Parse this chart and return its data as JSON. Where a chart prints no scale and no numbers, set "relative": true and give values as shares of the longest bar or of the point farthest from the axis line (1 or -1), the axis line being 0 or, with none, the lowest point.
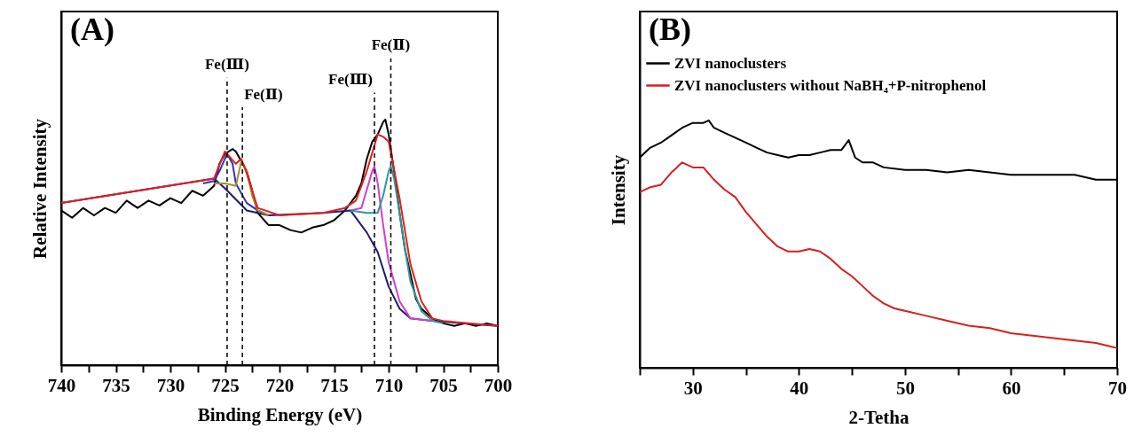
{
  "chart_data": [
    {
      "type": "line",
      "title": "(A)",
      "xlabel": "Binding Energy (eV)",
      "ylabel": "Relative Intensity",
      "relative": true,
      "tick_labels": "x",
      "xlim": [
        740,
        700
      ],
      "xticks": [
        740,
        {
          "value": 737.5,
          "label": null
        },
        735,
        {
          "value": 732.5,
          "label": null
        },
        730,
        {
          "value": 727.5,
          "label": null
        },
        725,
        {
          "value": 722.5,
          "label": null
        },
        720,
        {
          "value": 717.5,
          "label": null
        },
        715,
        {
          "value": 712.5,
          "label": null
        },
        710,
        {
          "value": 707.5,
          "label": null
        },
        705,
        {
          "value": 702.5,
          "label": null
        },
        700
      ],
      "ref_lines": [
        {
          "axis": "x",
          "value": 724.8,
          "label": "Fe(Ⅲ)",
          "line_style": "dashed"
        },
        {
          "axis": "x",
          "value": 723.4,
          "label": "Fe(Ⅱ)",
          "line_style": "dashed"
        },
        {
          "axis": "x",
          "value": 711.3,
          "label": "Fe(Ⅲ)",
          "line_style": "dashed"
        },
        {
          "axis": "x",
          "value": 709.8,
          "label": "Fe(Ⅱ)",
          "line_style": "dashed"
        }
      ],
      "series": [
        {
          "color": "#000000",
          "x": [
            740,
            739,
            738,
            737,
            736,
            735,
            734,
            733,
            732,
            731,
            730,
            729,
            728,
            727,
            726,
            725.5,
            725,
            724.3,
            724,
            723.5,
            723,
            722.5,
            722,
            721,
            720,
            719,
            718,
            717,
            716,
            715,
            714,
            713,
            712.5,
            712,
            711.5,
            711,
            710.5,
            710.3,
            710,
            709.5,
            709,
            708.5,
            708,
            707.5,
            707,
            706.5,
            706,
            705,
            704,
            703,
            702,
            701,
            700
          ],
          "values": [
            0.63,
            0.6,
            0.64,
            0.61,
            0.64,
            0.62,
            0.67,
            0.64,
            0.67,
            0.65,
            0.68,
            0.66,
            0.71,
            0.69,
            0.73,
            0.82,
            0.86,
            0.88,
            0.87,
            0.83,
            0.79,
            0.71,
            0.62,
            0.57,
            0.57,
            0.55,
            0.54,
            0.56,
            0.57,
            0.59,
            0.63,
            0.69,
            0.74,
            0.84,
            0.91,
            0.94,
            0.99,
            1.0,
            0.94,
            0.79,
            0.62,
            0.47,
            0.37,
            0.27,
            0.23,
            0.21,
            0.19,
            0.17,
            0.16,
            0.17,
            0.16,
            0.17,
            0.16
          ]
        },
        {
          "color": "#1c1c6e",
          "x": [
            740,
            726,
            725,
            723,
            721,
            716,
            713.5,
            712,
            711,
            710,
            709,
            708,
            706,
            700
          ],
          "values": [
            0.66,
            0.76,
            0.72,
            0.63,
            0.61,
            0.62,
            0.63,
            0.54,
            0.46,
            0.32,
            0.23,
            0.19,
            0.18,
            0.16
          ]
        },
        {
          "color": "#3030c0",
          "x": [
            727,
            726,
            725.5,
            724.8,
            724.3,
            724,
            723,
            722,
            721
          ],
          "values": [
            0.74,
            0.75,
            0.79,
            0.86,
            0.82,
            0.74,
            0.66,
            0.63,
            0.61
          ]
        },
        {
          "color": "#a09030",
          "x": [
            726,
            725,
            724,
            723.5,
            723,
            722.5,
            722,
            721
          ],
          "values": [
            0.74,
            0.74,
            0.73,
            0.83,
            0.79,
            0.69,
            0.63,
            0.61
          ]
        },
        {
          "color": "#d040d0",
          "x": [
            713.5,
            712.5,
            711.5,
            711.3,
            711,
            710.5,
            710,
            709,
            708,
            706
          ],
          "values": [
            0.63,
            0.64,
            0.79,
            0.81,
            0.74,
            0.57,
            0.42,
            0.26,
            0.19,
            0.18
          ]
        },
        {
          "color": "#2a9a9a",
          "x": [
            713.5,
            712,
            711,
            710.5,
            710,
            709.8,
            709.5,
            709,
            708.5,
            708,
            707,
            706,
            705
          ],
          "values": [
            0.63,
            0.62,
            0.62,
            0.69,
            0.79,
            0.81,
            0.76,
            0.62,
            0.47,
            0.34,
            0.22,
            0.18,
            0.17
          ]
        },
        {
          "color": "#e02020",
          "x": [
            740,
            726,
            725,
            724,
            723.5,
            723,
            722,
            720,
            716,
            714,
            713,
            712,
            711,
            710.5,
            710,
            709,
            708,
            707,
            706,
            705,
            700
          ],
          "values": [
            0.66,
            0.76,
            0.87,
            0.82,
            0.84,
            0.78,
            0.64,
            0.61,
            0.62,
            0.64,
            0.67,
            0.79,
            0.94,
            0.93,
            0.91,
            0.68,
            0.41,
            0.26,
            0.19,
            0.18,
            0.16
          ]
        }
      ]
    },
    {
      "type": "line",
      "title": "(B)",
      "xlabel": "2-Tetha",
      "ylabel": "Intensity",
      "relative": true,
      "tick_labels": "x",
      "legend": "top left",
      "xlim": [
        25,
        70
      ],
      "xticks": [
        {
          "value": 25,
          "label": null
        },
        30,
        {
          "value": 35,
          "label": null
        },
        40,
        {
          "value": 45,
          "label": null
        },
        50,
        {
          "value": 55,
          "label": null
        },
        60,
        {
          "value": 65,
          "label": null
        },
        70
      ],
      "series": [
        {
          "name": "ZVI nanoclusters",
          "color": "#000000",
          "x": [
            25,
            26,
            27,
            28,
            29,
            30,
            31,
            31.5,
            32,
            33,
            34,
            35,
            36,
            37,
            38,
            39,
            40,
            41,
            42,
            43,
            44,
            44.7,
            45.3,
            46,
            47,
            48,
            50,
            52,
            54,
            56,
            58,
            60,
            62,
            64,
            66,
            68,
            70
          ],
          "values": [
            0.85,
            0.89,
            0.91,
            0.94,
            0.97,
            0.99,
            0.99,
            1.0,
            0.97,
            0.95,
            0.93,
            0.91,
            0.89,
            0.87,
            0.86,
            0.85,
            0.86,
            0.86,
            0.87,
            0.88,
            0.88,
            0.92,
            0.85,
            0.83,
            0.83,
            0.81,
            0.8,
            0.8,
            0.79,
            0.8,
            0.79,
            0.78,
            0.78,
            0.78,
            0.78,
            0.76,
            0.76
          ]
        },
        {
          "name": "ZVI nanoclusters without NaBH₄+P-nitrophenol",
          "color": "#d42020",
          "x": [
            25,
            26,
            27,
            28,
            29,
            30,
            31,
            32,
            33,
            34,
            35,
            36,
            37,
            38,
            39,
            40,
            41,
            42,
            43,
            44,
            45,
            46,
            47,
            48,
            49,
            50,
            52,
            54,
            56,
            58,
            60,
            62,
            64,
            66,
            68,
            70
          ],
          "values": [
            0.71,
            0.73,
            0.74,
            0.79,
            0.83,
            0.81,
            0.81,
            0.76,
            0.72,
            0.69,
            0.63,
            0.58,
            0.53,
            0.49,
            0.47,
            0.47,
            0.48,
            0.47,
            0.44,
            0.4,
            0.37,
            0.33,
            0.29,
            0.26,
            0.24,
            0.23,
            0.21,
            0.19,
            0.17,
            0.16,
            0.14,
            0.13,
            0.12,
            0.11,
            0.1,
            0.08
          ]
        }
      ]
    }
  ]
}
